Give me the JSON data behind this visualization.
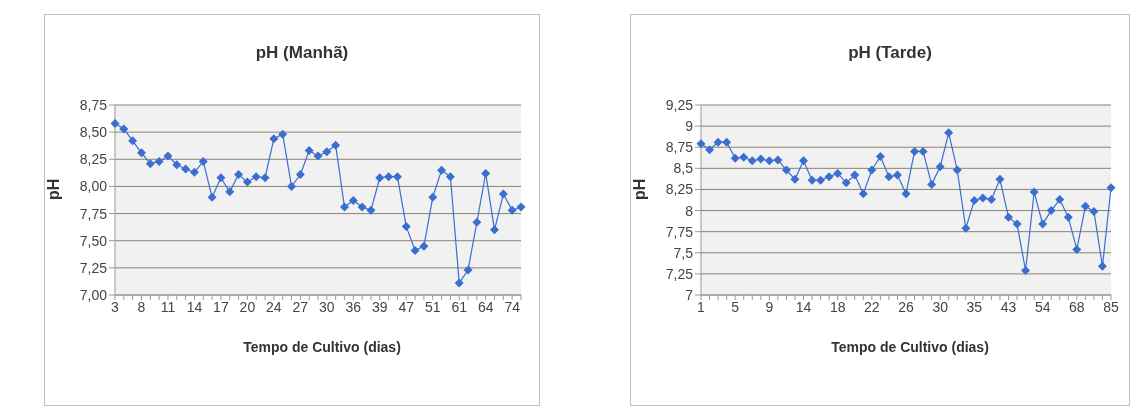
{
  "chart_data": [
    {
      "type": "line",
      "title": "pH (Manhã)",
      "xlabel": "Tempo de Cultivo (dias)",
      "ylabel": "pH",
      "categories": [
        "3",
        null,
        null,
        "8",
        null,
        null,
        "11",
        null,
        null,
        "14",
        null,
        null,
        "17",
        null,
        null,
        "20",
        null,
        null,
        "24",
        null,
        null,
        "27",
        null,
        null,
        "30",
        null,
        null,
        "36",
        null,
        null,
        "39",
        null,
        null,
        "47",
        null,
        null,
        "51",
        null,
        null,
        "61",
        null,
        null,
        "64",
        null,
        null,
        "74",
        null
      ],
      "series": [
        {
          "color": "#3a6fd0",
          "values": [
            8.58,
            8.53,
            8.42,
            8.31,
            8.21,
            8.23,
            8.28,
            8.2,
            8.16,
            8.13,
            8.23,
            7.9,
            8.08,
            7.95,
            8.11,
            8.04,
            8.09,
            8.08,
            8.44,
            8.48,
            8.0,
            8.11,
            8.33,
            8.28,
            8.32,
            8.38,
            7.81,
            7.87,
            7.81,
            7.78,
            8.08,
            8.09,
            8.09,
            7.63,
            7.41,
            7.45,
            7.9,
            8.15,
            8.09,
            7.11,
            7.23,
            7.67,
            8.12,
            7.6,
            7.93,
            7.78,
            7.81
          ]
        }
      ],
      "ylim": [
        7,
        8.75
      ],
      "yticks": [
        {
          "value": 7,
          "label": "7,00"
        },
        {
          "value": 7.25,
          "label": "7,25"
        },
        {
          "value": 7.5,
          "label": "7,50"
        },
        {
          "value": 7.75,
          "label": "7,75"
        },
        {
          "value": 8,
          "label": "8,00"
        },
        {
          "value": 8.25,
          "label": "8,25"
        },
        {
          "value": 8.5,
          "label": "8,50"
        },
        {
          "value": 8.75,
          "label": "8,75"
        }
      ],
      "grid": "y",
      "legend": false,
      "marker": "diamond",
      "line_style": "solid"
    },
    {
      "type": "line",
      "title": "pH (Tarde)",
      "xlabel": "Tempo de Cultivo (dias)",
      "ylabel": "pH",
      "categories": [
        "1",
        null,
        null,
        null,
        "5",
        null,
        null,
        null,
        "9",
        null,
        null,
        null,
        "14",
        null,
        null,
        null,
        "18",
        null,
        null,
        null,
        "22",
        null,
        null,
        null,
        "26",
        null,
        null,
        null,
        "30",
        null,
        null,
        null,
        "35",
        null,
        null,
        null,
        "43",
        null,
        null,
        null,
        "54",
        null,
        null,
        null,
        "68",
        null,
        null,
        null,
        "85"
      ],
      "series": [
        {
          "color": "#3a6fd0",
          "values": [
            8.79,
            8.72,
            8.81,
            8.81,
            8.62,
            8.63,
            8.59,
            8.61,
            8.59,
            8.6,
            8.48,
            8.37,
            8.59,
            8.36,
            8.36,
            8.4,
            8.44,
            8.33,
            8.42,
            8.2,
            8.48,
            8.64,
            8.4,
            8.42,
            8.2,
            8.7,
            8.7,
            8.31,
            8.52,
            8.92,
            8.48,
            7.79,
            8.12,
            8.15,
            8.13,
            8.37,
            7.92,
            7.84,
            7.29,
            8.22,
            7.84,
            8.0,
            8.13,
            7.92,
            7.54,
            8.05,
            7.99,
            7.34,
            8.27
          ]
        }
      ],
      "ylim": [
        7,
        9.25
      ],
      "yticks": [
        {
          "value": 7,
          "label": "7"
        },
        {
          "value": 7.25,
          "label": "7,25"
        },
        {
          "value": 7.5,
          "label": "7,5"
        },
        {
          "value": 7.75,
          "label": "7,75"
        },
        {
          "value": 8,
          "label": "8"
        },
        {
          "value": 8.25,
          "label": "8,25"
        },
        {
          "value": 8.5,
          "label": "8,5"
        },
        {
          "value": 8.75,
          "label": "8,75"
        },
        {
          "value": 9,
          "label": "9"
        },
        {
          "value": 9.25,
          "label": "9,25"
        }
      ],
      "grid": "y",
      "legend": false,
      "marker": "diamond",
      "line_style": "solid"
    }
  ]
}
